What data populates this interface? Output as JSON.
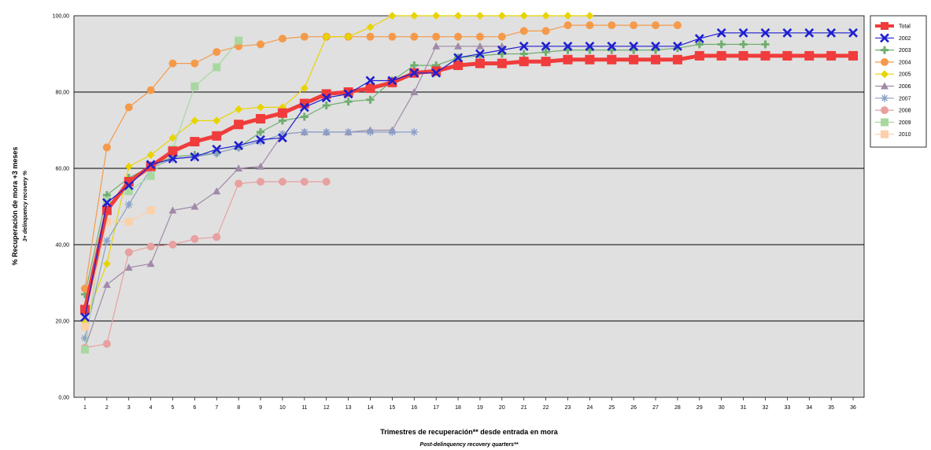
{
  "chart_data": {
    "type": "line",
    "xlabel": "Trimestres de recuperación** desde entrada en mora",
    "xlabel_sub": "Post-delinquency recovery quarters**",
    "ylabel": "% Recuperación de mora +3 meses",
    "ylabel_sub": "3+ delinquency recovery %",
    "x": [
      1,
      2,
      3,
      4,
      5,
      6,
      7,
      8,
      9,
      10,
      11,
      12,
      13,
      14,
      15,
      16,
      17,
      18,
      19,
      20,
      21,
      22,
      23,
      24,
      25,
      26,
      27,
      28,
      29,
      30,
      31,
      32,
      33,
      34,
      35,
      36
    ],
    "y_ticks": [
      "0,00",
      "20,00",
      "40,00",
      "60,00",
      "80,00",
      "100,00"
    ],
    "ylim": [
      0,
      100
    ],
    "grid": "horizontal",
    "legend_position": "right",
    "series": [
      {
        "name": "Total",
        "color": "#f03c3c",
        "marker": "square",
        "width": 5,
        "values": [
          23,
          49,
          56.5,
          60.5,
          64.5,
          67,
          68.5,
          71.5,
          73,
          74.5,
          77,
          79.5,
          80,
          81,
          82.5,
          85,
          85.5,
          87,
          87.5,
          87.5,
          88,
          88,
          88.5,
          88.5,
          88.5,
          88.5,
          88.5,
          88.5,
          89.5,
          89.5,
          89.5,
          89.5,
          89.5,
          89.5,
          89.5,
          89.5
        ]
      },
      {
        "name": "2002",
        "color": "#1f1fd0",
        "marker": "x",
        "width": 1.2,
        "values": [
          21,
          51,
          55.5,
          61,
          62.5,
          63,
          65,
          66,
          67.5,
          68,
          76,
          78.5,
          79.5,
          83,
          83,
          85,
          85,
          89,
          90,
          91,
          92,
          92,
          92,
          92,
          92,
          92,
          92,
          92,
          94,
          95.5,
          95.5,
          95.5,
          95.5,
          95.5,
          95.5,
          95.5
        ]
      },
      {
        "name": "2003",
        "color": "#6fae6f",
        "marker": "plus",
        "width": 1.2,
        "values": [
          27,
          53,
          57.5,
          60.5,
          63,
          63.5,
          64,
          65.5,
          69.5,
          72.5,
          73.5,
          76.5,
          77.5,
          78,
          83,
          87,
          87,
          89,
          89.5,
          90,
          90,
          90.5,
          91,
          91,
          91,
          91,
          91,
          91.5,
          92.5,
          92.5,
          92.5,
          92.5,
          null,
          null,
          null,
          null
        ]
      },
      {
        "name": "2004",
        "color": "#f59a4a",
        "marker": "circle",
        "width": 1.2,
        "values": [
          28.5,
          65.5,
          76,
          80.5,
          87.5,
          87.5,
          90.5,
          92,
          92.5,
          94,
          94.5,
          94.5,
          94.5,
          94.5,
          94.5,
          94.5,
          94.5,
          94.5,
          94.5,
          94.5,
          96,
          96,
          97.5,
          97.5,
          97.5,
          97.5,
          97.5,
          97.5,
          null,
          null,
          null,
          null,
          null,
          null,
          null,
          null
        ]
      },
      {
        "name": "2005",
        "color": "#e8d400",
        "marker": "diamond",
        "width": 1.2,
        "values": [
          20,
          35,
          60.5,
          63.5,
          68,
          72.5,
          72.5,
          75.5,
          76,
          76,
          81,
          94.5,
          94.5,
          97,
          100,
          100,
          100,
          100,
          100,
          100,
          100,
          100,
          100,
          100,
          null,
          null,
          null,
          null,
          null,
          null,
          null,
          null,
          null,
          null,
          null,
          null
        ]
      },
      {
        "name": "2006",
        "color": "#a08aa8",
        "marker": "triangle",
        "width": 1.2,
        "values": [
          13,
          29.5,
          34,
          35,
          49,
          50,
          54,
          60,
          60.5,
          69,
          69.5,
          69.5,
          69.5,
          70,
          70,
          80,
          92,
          92,
          92,
          92,
          null,
          null,
          null,
          null,
          null,
          null,
          null,
          null,
          null,
          null,
          null,
          null,
          null,
          null,
          null,
          null
        ]
      },
      {
        "name": "2007",
        "color": "#8aa0c8",
        "marker": "star",
        "width": 1.2,
        "values": [
          15.5,
          41,
          50.5,
          60,
          62.5,
          63,
          64,
          65.5,
          67,
          69,
          69.5,
          69.5,
          69.5,
          69.5,
          69.5,
          69.5,
          null,
          null,
          null,
          null,
          null,
          null,
          null,
          null,
          null,
          null,
          null,
          null,
          null,
          null,
          null,
          null,
          null,
          null,
          null,
          null
        ]
      },
      {
        "name": "2008",
        "color": "#e8a0a0",
        "marker": "circle",
        "width": 1.2,
        "values": [
          13,
          14,
          38,
          39.5,
          40,
          41.5,
          42,
          56,
          56.5,
          56.5,
          56.5,
          56.5,
          null,
          null,
          null,
          null,
          null,
          null,
          null,
          null,
          null,
          null,
          null,
          null,
          null,
          null,
          null,
          null,
          null,
          null,
          null,
          null,
          null,
          null,
          null,
          null
        ]
      },
      {
        "name": "2009",
        "color": "#a8d8a0",
        "marker": "square",
        "width": 1.2,
        "values": [
          12.5,
          51.5,
          54,
          58,
          65,
          81.5,
          86.5,
          93.5,
          null,
          null,
          null,
          null,
          null,
          null,
          null,
          null,
          null,
          null,
          null,
          null,
          null,
          null,
          null,
          null,
          null,
          null,
          null,
          null,
          null,
          null,
          null,
          null,
          null,
          null,
          null,
          null
        ]
      },
      {
        "name": "2010",
        "color": "#fcd0a8",
        "marker": "square",
        "width": 1.2,
        "values": [
          18.5,
          46,
          46,
          49,
          null,
          null,
          null,
          null,
          null,
          null,
          null,
          null,
          null,
          null,
          null,
          null,
          null,
          null,
          null,
          null,
          null,
          null,
          null,
          null,
          null,
          null,
          null,
          null,
          null,
          null,
          null,
          null,
          null,
          null,
          null,
          null
        ]
      }
    ]
  }
}
